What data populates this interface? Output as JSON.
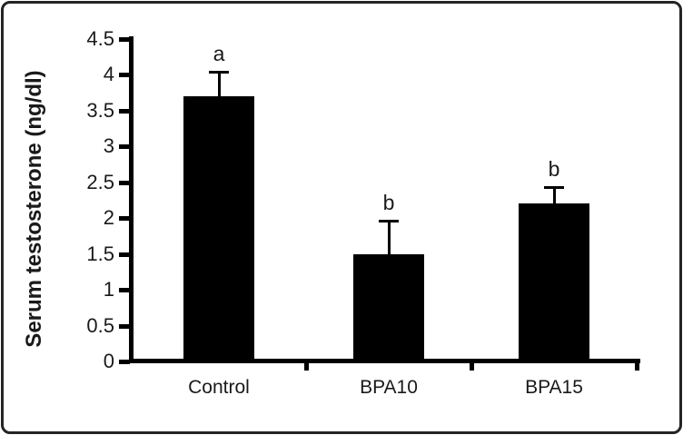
{
  "chart_data": {
    "type": "bar",
    "title": "",
    "xlabel": "",
    "ylabel": "Serum testosterone (ng/dl)",
    "categories": [
      "Control",
      "BPA10",
      "BPA15"
    ],
    "values": [
      3.7,
      1.5,
      2.2
    ],
    "errors": [
      0.33,
      0.45,
      0.22
    ],
    "error_direction": "upper",
    "sig_letters": [
      "a",
      "b",
      "b"
    ],
    "ylim": [
      0,
      4.5
    ],
    "ytick_step": 0.5,
    "ytick_labels": [
      "4.5",
      "4",
      "3.5",
      "3",
      "2.5",
      "2",
      "1.5",
      "1",
      "0.5",
      "0"
    ],
    "grid": false,
    "legend": false,
    "bar_color": "#000000",
    "axis_color": "#000000",
    "text_color": "#1a1a1a",
    "background": "#ffffff",
    "border_color": "#242424"
  }
}
